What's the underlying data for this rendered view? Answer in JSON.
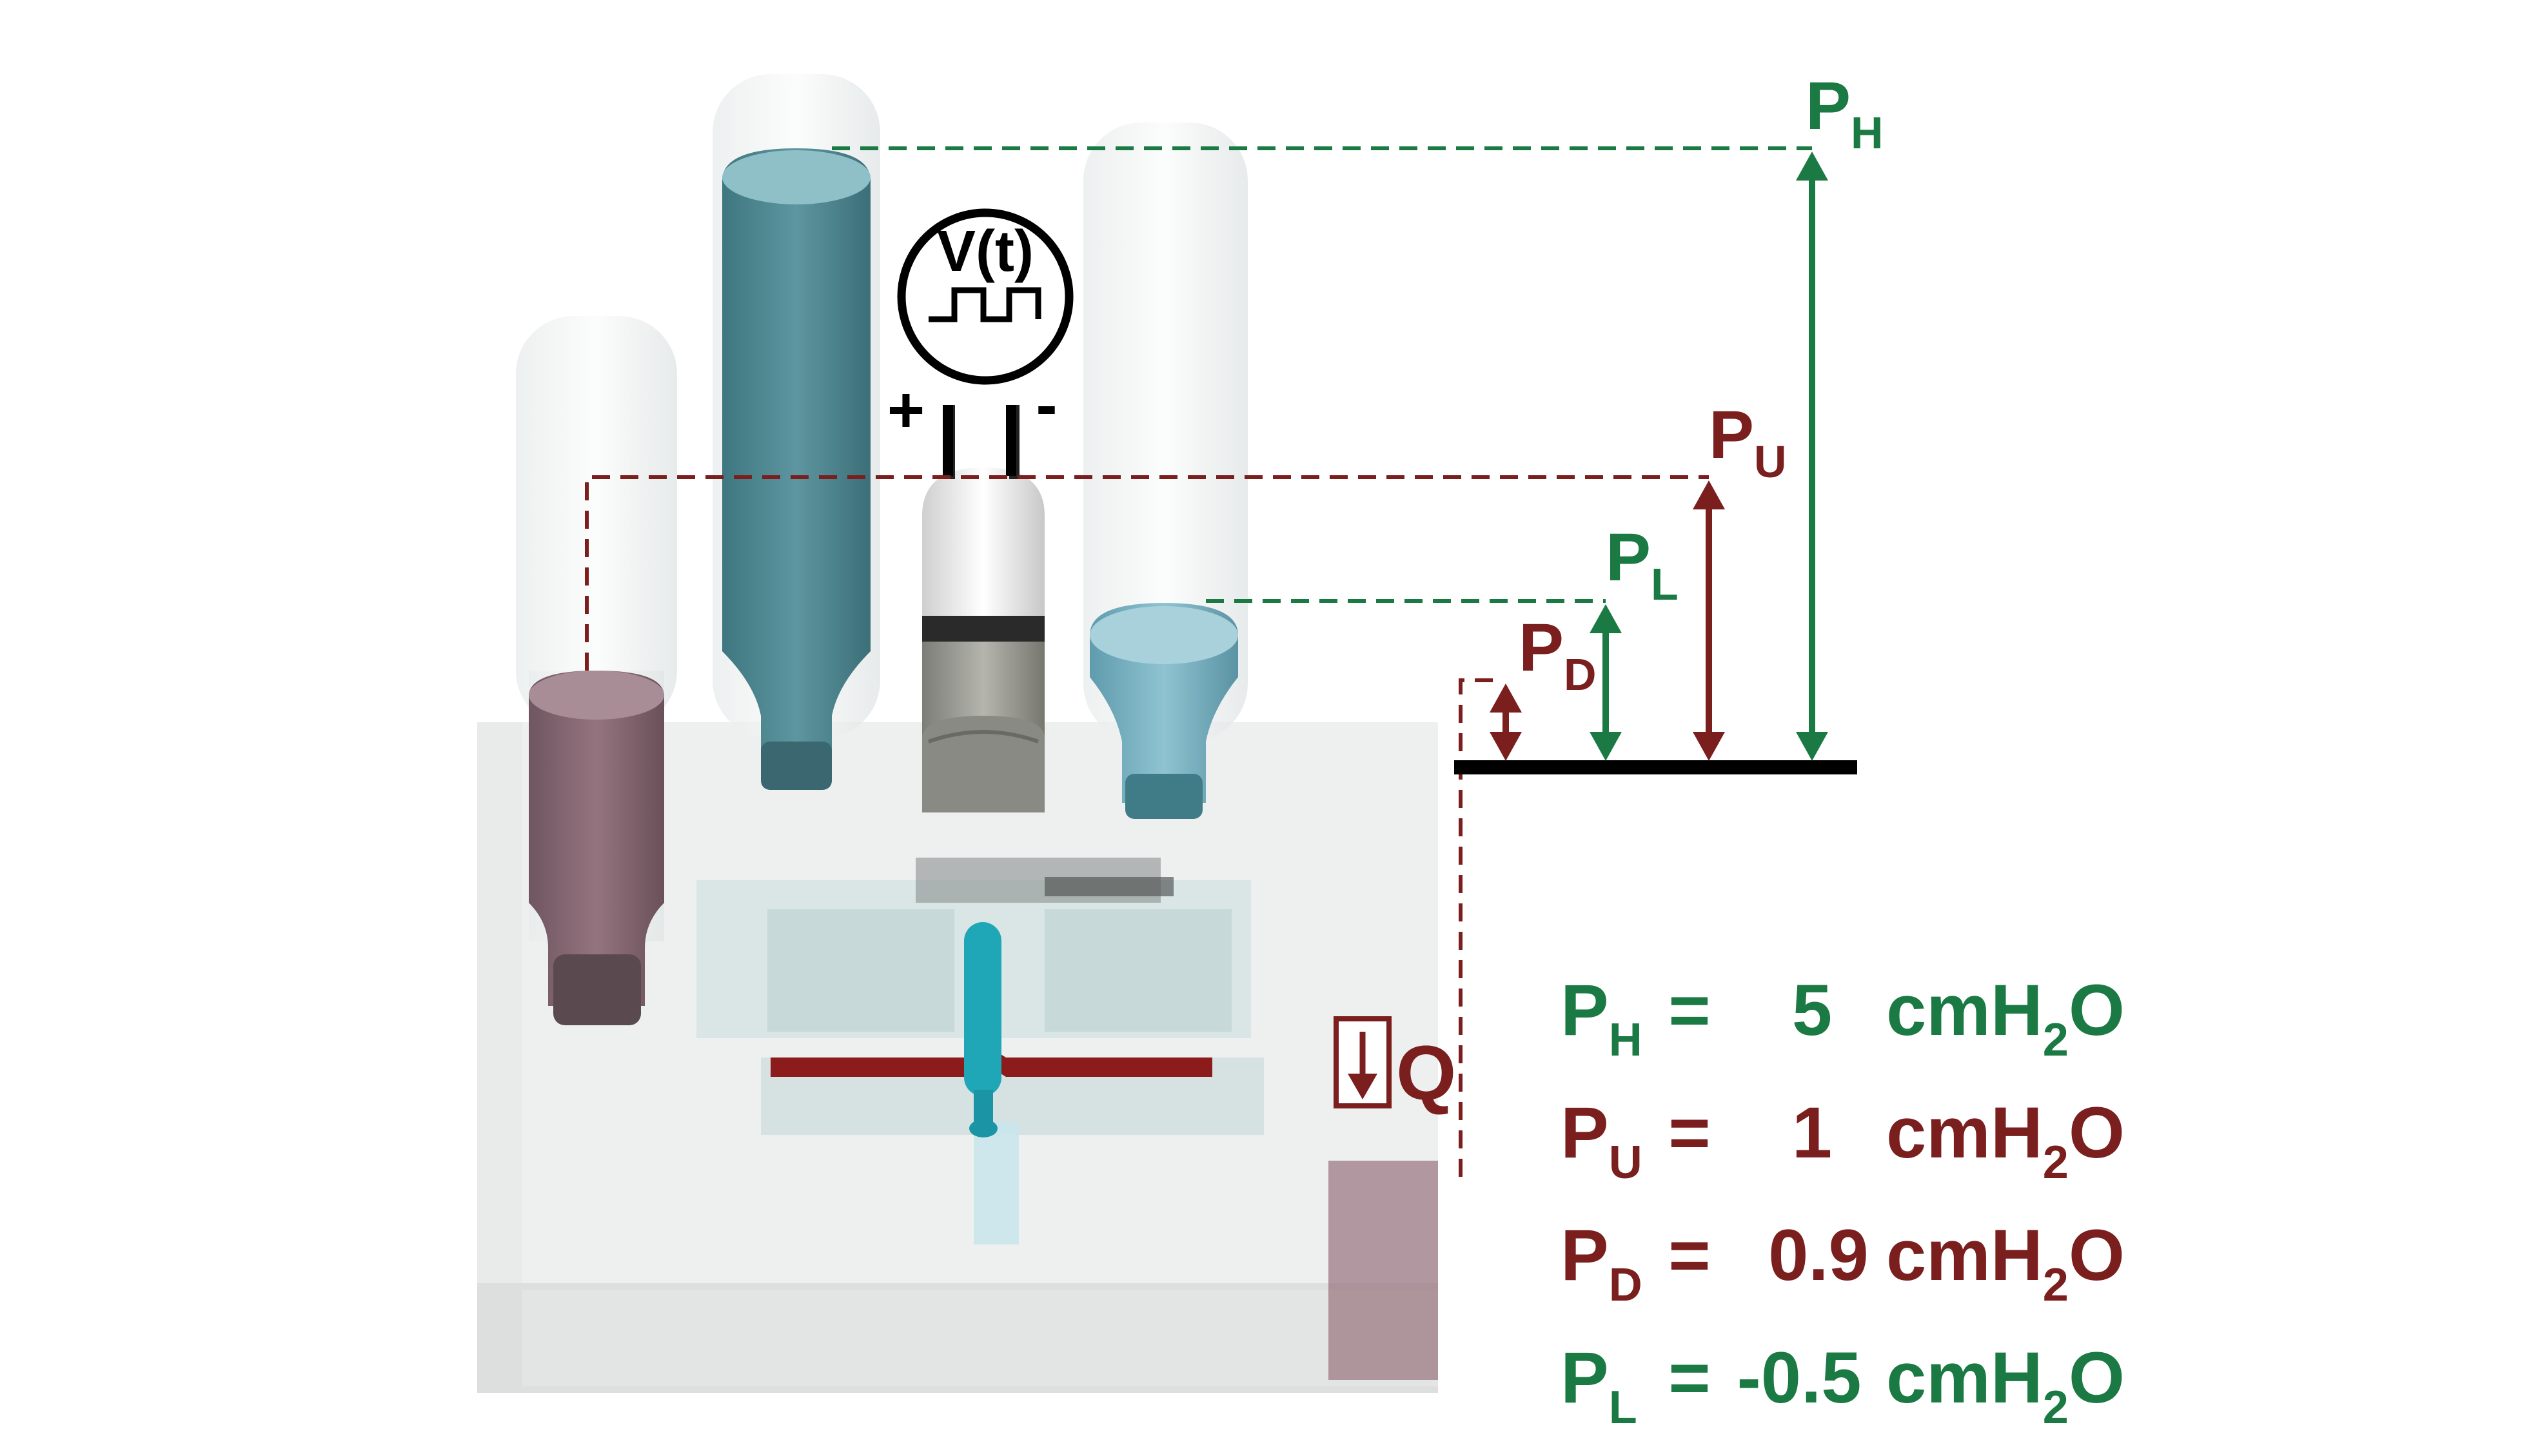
{
  "colors": {
    "green": "#1b7a43",
    "red": "#7a1e1e",
    "black": "#000000",
    "pink_liquid": "#8a6a74",
    "teal_liquid": "#4f8a92",
    "blue_liquid": "#7fb8c8",
    "cyan_channel": "#1fa7b8"
  },
  "source": {
    "label": "V(t)",
    "plus": "+",
    "minus": "-"
  },
  "flow_label": "Q",
  "pressure_labels": [
    {
      "id": "H",
      "base": "P",
      "sub": "H",
      "color": "green"
    },
    {
      "id": "U",
      "base": "P",
      "sub": "U",
      "color": "red"
    },
    {
      "id": "L",
      "base": "P",
      "sub": "L",
      "color": "green"
    },
    {
      "id": "D",
      "base": "P",
      "sub": "D",
      "color": "red"
    }
  ],
  "pressure_values": [
    {
      "base": "P",
      "sub": "H",
      "eq": "=",
      "value": "5",
      "unit_pre": "cmH",
      "unit_sub": "2",
      "unit_post": "O",
      "color": "green"
    },
    {
      "base": "P",
      "sub": "U",
      "eq": "=",
      "value": "1",
      "unit_pre": "cmH",
      "unit_sub": "2",
      "unit_post": "O",
      "color": "red"
    },
    {
      "base": "P",
      "sub": "D",
      "eq": "=",
      "value": "0.9",
      "unit_pre": "cmH",
      "unit_sub": "2",
      "unit_post": "O",
      "color": "red"
    },
    {
      "base": "P",
      "sub": "L",
      "eq": "=",
      "value": "-0.5",
      "unit_pre": "cmH",
      "unit_sub": "2",
      "unit_post": "O",
      "color": "green"
    }
  ]
}
